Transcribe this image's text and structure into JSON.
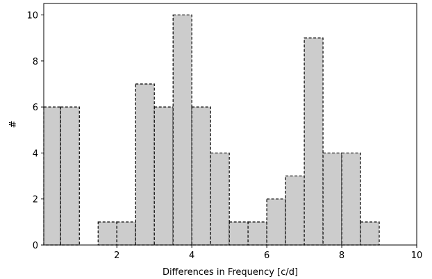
{
  "chart_data": {
    "type": "bar",
    "bin_width": 0.5,
    "bins": [
      {
        "x0": 0.0,
        "x1": 0.5,
        "count": 6
      },
      {
        "x0": 0.5,
        "x1": 1.0,
        "count": 6
      },
      {
        "x0": 1.0,
        "x1": 1.5,
        "count": 0
      },
      {
        "x0": 1.5,
        "x1": 2.0,
        "count": 1
      },
      {
        "x0": 2.0,
        "x1": 2.5,
        "count": 1
      },
      {
        "x0": 2.5,
        "x1": 3.0,
        "count": 7
      },
      {
        "x0": 3.0,
        "x1": 3.5,
        "count": 6
      },
      {
        "x0": 3.5,
        "x1": 4.0,
        "count": 10
      },
      {
        "x0": 4.0,
        "x1": 4.5,
        "count": 6
      },
      {
        "x0": 4.5,
        "x1": 5.0,
        "count": 4
      },
      {
        "x0": 5.0,
        "x1": 5.5,
        "count": 1
      },
      {
        "x0": 5.5,
        "x1": 6.0,
        "count": 1
      },
      {
        "x0": 6.0,
        "x1": 6.5,
        "count": 2
      },
      {
        "x0": 6.5,
        "x1": 7.0,
        "count": 3
      },
      {
        "x0": 7.0,
        "x1": 7.5,
        "count": 9
      },
      {
        "x0": 7.5,
        "x1": 8.0,
        "count": 4
      },
      {
        "x0": 8.0,
        "x1": 8.5,
        "count": 4
      },
      {
        "x0": 8.5,
        "x1": 9.0,
        "count": 1
      }
    ],
    "title": "",
    "xlabel": "Differences in Frequency [c/d]",
    "ylabel": "#",
    "xlim": [
      0.05,
      10
    ],
    "ylim": [
      0,
      10.5
    ],
    "xticks": [
      2,
      4,
      6,
      8,
      10
    ],
    "yticks": [
      0,
      2,
      4,
      6,
      8,
      10
    ],
    "bar_fill_color": "#cccccc",
    "bar_edge_color": "#000000",
    "bar_edge_style": "dashed",
    "grid": false,
    "legend": "none"
  }
}
